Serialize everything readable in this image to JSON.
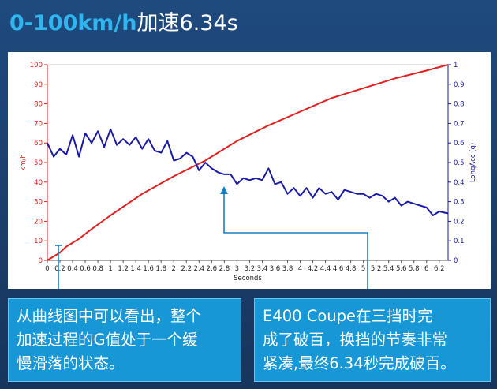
{
  "title": {
    "accent": "0-100km/h",
    "rest": "加速6.34s"
  },
  "chart_data": {
    "type": "line",
    "xlabel": "Seconds",
    "ylabel_left": "km/h",
    "ylabel_right": "LongAcc (g)",
    "xlim": [
      0,
      6.34
    ],
    "ylim_left": [
      0,
      100
    ],
    "ylim_right": [
      0,
      1
    ],
    "x_ticks": [
      "0",
      "0.2",
      "0.4",
      "0.6",
      "0.8",
      "1",
      "1.2",
      "1.4",
      "1.6",
      "1.8",
      "2",
      "2.2",
      "2.4",
      "2.6",
      "2.8",
      "3",
      "3.2",
      "3.4",
      "3.6",
      "3.8",
      "4",
      "4.2",
      "4.4",
      "4.6",
      "4.8",
      "5",
      "5.2",
      "5.4",
      "5.6",
      "5.8",
      "6",
      "6.2"
    ],
    "y_ticks_left": [
      "0",
      "10",
      "20",
      "30",
      "40",
      "50",
      "60",
      "70",
      "80",
      "90",
      "100"
    ],
    "y_ticks_right": [
      "0",
      "0.1",
      "0.2",
      "0.3",
      "0.4",
      "0.5",
      "0.6",
      "0.7",
      "0.8",
      "0.9",
      "1"
    ],
    "colors": {
      "speed": "#e02020",
      "acc": "#1a1aa8",
      "axis_left": "#d62020",
      "axis_right": "#1a1a99"
    },
    "series": [
      {
        "key": "speed",
        "axis": "left",
        "x": [
          0,
          0.1,
          0.2,
          0.3,
          0.5,
          0.7,
          1.0,
          1.5,
          2.0,
          2.5,
          3.0,
          3.5,
          4.0,
          4.5,
          5.0,
          5.5,
          6.0,
          6.34
        ],
        "values": [
          0,
          2,
          4,
          7,
          11,
          16,
          23,
          34,
          43,
          51,
          61,
          69,
          76,
          83,
          88,
          93,
          97,
          100
        ]
      },
      {
        "key": "acc",
        "axis": "right",
        "x": [
          0,
          0.1,
          0.2,
          0.3,
          0.4,
          0.5,
          0.6,
          0.7,
          0.8,
          0.9,
          1.0,
          1.1,
          1.2,
          1.3,
          1.4,
          1.5,
          1.6,
          1.7,
          1.8,
          1.9,
          2.0,
          2.1,
          2.2,
          2.3,
          2.4,
          2.5,
          2.6,
          2.7,
          2.8,
          2.9,
          3.0,
          3.1,
          3.2,
          3.3,
          3.4,
          3.5,
          3.6,
          3.7,
          3.8,
          3.9,
          4.0,
          4.1,
          4.2,
          4.3,
          4.4,
          4.5,
          4.6,
          4.7,
          4.8,
          4.9,
          5.0,
          5.1,
          5.2,
          5.3,
          5.4,
          5.5,
          5.6,
          5.7,
          5.8,
          5.9,
          6.0,
          6.1,
          6.2,
          6.34
        ],
        "values": [
          0.6,
          0.53,
          0.57,
          0.54,
          0.64,
          0.53,
          0.65,
          0.6,
          0.66,
          0.58,
          0.67,
          0.59,
          0.62,
          0.59,
          0.63,
          0.57,
          0.62,
          0.56,
          0.55,
          0.61,
          0.51,
          0.52,
          0.55,
          0.53,
          0.46,
          0.5,
          0.47,
          0.45,
          0.44,
          0.44,
          0.39,
          0.42,
          0.41,
          0.42,
          0.41,
          0.47,
          0.39,
          0.4,
          0.34,
          0.37,
          0.33,
          0.37,
          0.32,
          0.37,
          0.34,
          0.35,
          0.31,
          0.36,
          0.35,
          0.34,
          0.34,
          0.32,
          0.34,
          0.33,
          0.3,
          0.32,
          0.28,
          0.3,
          0.29,
          0.28,
          0.27,
          0.23,
          0.25,
          0.24
        ]
      }
    ]
  },
  "callouts": {
    "left": [
      "从曲线图中可以看出，整个",
      "加速过程的G值处于一个缓",
      "慢滑落的状态。"
    ],
    "right": [
      "E400 Coupe在三挡时完",
      "成了破百，换挡的节奏非常",
      "紧凑,最终6.34秒完成破百。"
    ]
  }
}
